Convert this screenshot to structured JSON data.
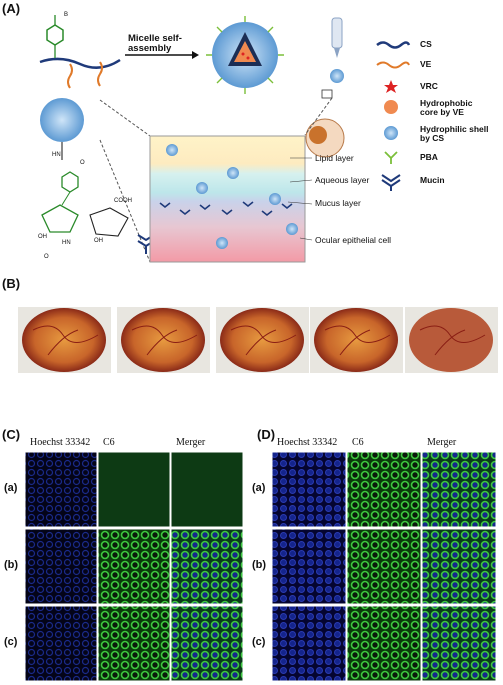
{
  "panel_a": {
    "label": "(A)",
    "arrow_label": "Micelle self-assembly",
    "legend": [
      "CS",
      "VE",
      "VRC",
      "Hydrophobic core by VE",
      "Hydrophilic shell by CS",
      "PBA",
      "Mucin"
    ],
    "layers": [
      "Lipid layer",
      "Aqueous layer",
      "Mucus layer",
      "Ocular epithelial cell"
    ],
    "chem_labels": [
      "B",
      "HN",
      "O",
      "COOH",
      "OH",
      "OH",
      "HN",
      "O"
    ]
  },
  "panel_b": {
    "label": "(B)"
  },
  "panel_c": {
    "label": "(C)",
    "columns": [
      "Hoechst 33342",
      "C6",
      "Merger"
    ],
    "rows": [
      "(a)",
      "(b)",
      "(c)"
    ]
  },
  "panel_d": {
    "label": "(D)",
    "columns": [
      "Hoechst 33342",
      "C6",
      "Merger"
    ],
    "rows": [
      "(a)",
      "(b)",
      "(c)"
    ]
  }
}
